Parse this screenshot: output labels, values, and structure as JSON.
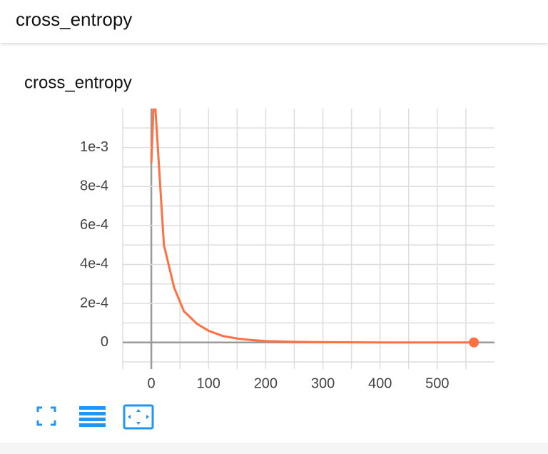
{
  "header": {
    "title": "cross_entropy"
  },
  "chart_data": {
    "type": "line",
    "title": "cross_entropy",
    "x": [
      0,
      5,
      22,
      40,
      57,
      80,
      100,
      125,
      150,
      175,
      200,
      250,
      300,
      400,
      500,
      564
    ],
    "series": [
      {
        "color": "#ff7043",
        "values": [
          0.00092,
          0.0013,
          0.0005,
          0.00028,
          0.00016,
          9.5e-05,
          6e-05,
          3.3e-05,
          2e-05,
          1.2e-05,
          7e-06,
          3e-06,
          1e-06,
          0,
          0,
          0
        ]
      }
    ],
    "xlim": [
      -50,
      600
    ],
    "ylim": [
      -0.0001,
      0.0012
    ],
    "xticks": [
      0,
      100,
      200,
      300,
      400,
      500
    ],
    "x_minor_ticks": [
      -50,
      50,
      150,
      250,
      350,
      450,
      550
    ],
    "yticks": [
      {
        "value": 0.001,
        "label": "1e-3"
      },
      {
        "value": 0.0008,
        "label": "8e-4"
      },
      {
        "value": 0.0006,
        "label": "6e-4"
      },
      {
        "value": 0.0004,
        "label": "4e-4"
      },
      {
        "value": 0.0002,
        "label": "2e-4"
      },
      0
    ],
    "y_minor_ticks": [
      -0.0001,
      0.0001,
      0.0003,
      0.0005,
      0.0007,
      0.0009,
      0.0011
    ],
    "grid": true,
    "end_marker": true
  }
}
